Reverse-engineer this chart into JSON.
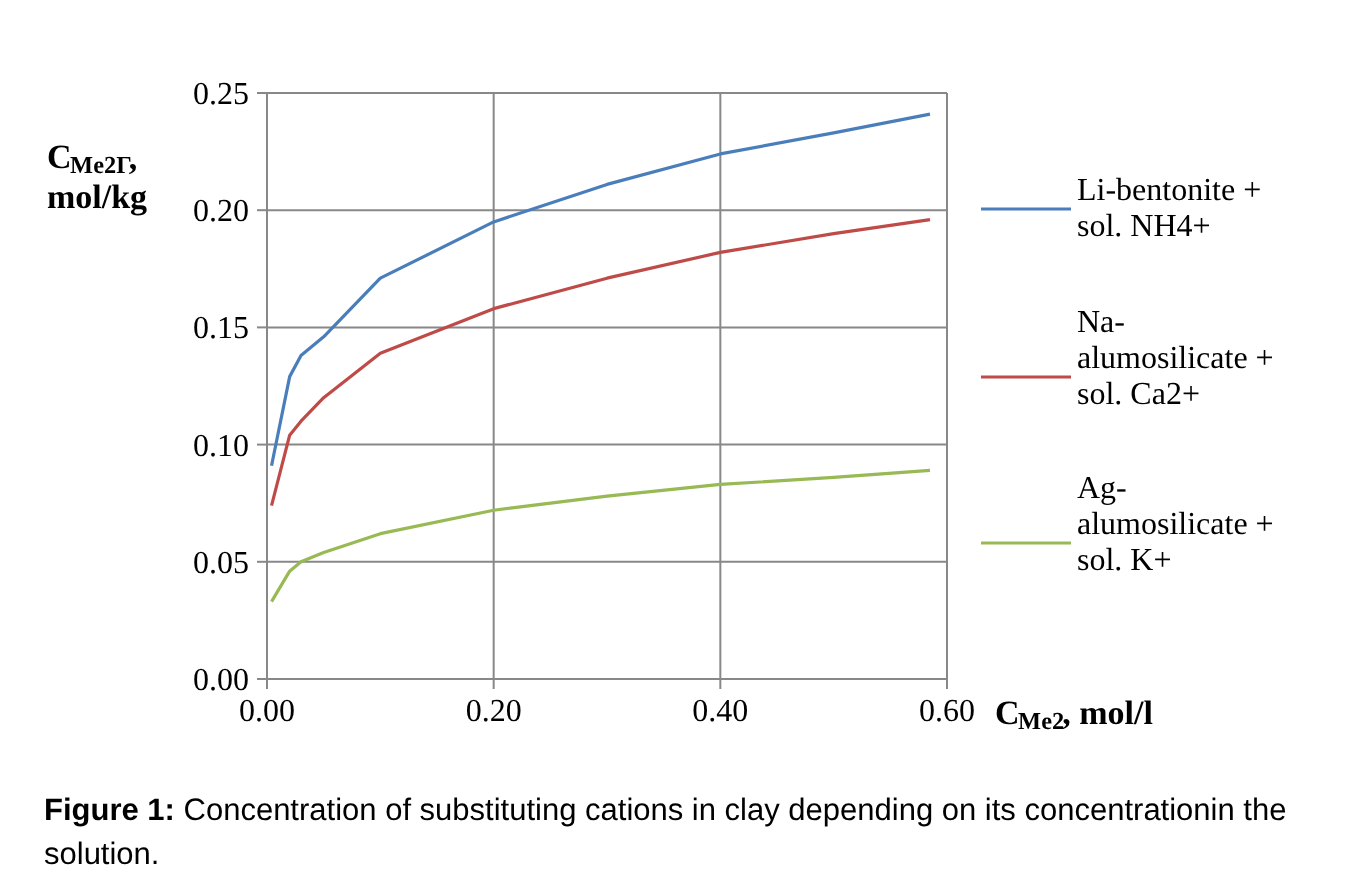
{
  "chart_data": {
    "type": "line",
    "xlabel": "C$_{Me2}$, mol/l",
    "ylabel": "C$_{Me2Г}$, mol/kg",
    "x": [
      0.004,
      0.02,
      0.03,
      0.05,
      0.1,
      0.2,
      0.3,
      0.4,
      0.5,
      0.585
    ],
    "series": [
      {
        "name": "Li-bentonite + sol. NH4+",
        "color": "#4a7ebb",
        "values": [
          0.091,
          0.129,
          0.138,
          0.146,
          0.171,
          0.195,
          0.211,
          0.224,
          0.233,
          0.241
        ]
      },
      {
        "name": "Na-alumosilicate + sol. Ca2+",
        "color": "#be4b48",
        "values": [
          0.074,
          0.104,
          0.11,
          0.12,
          0.139,
          0.158,
          0.171,
          0.182,
          0.19,
          0.196
        ]
      },
      {
        "name": "Ag-alumosilicate + sol. K+",
        "color": "#98b954",
        "values": [
          0.033,
          0.046,
          0.05,
          0.054,
          0.062,
          0.072,
          0.078,
          0.083,
          0.086,
          0.089
        ]
      }
    ],
    "xlim": [
      0,
      0.6
    ],
    "ylim": [
      0,
      0.25
    ],
    "xticks": [
      {
        "value": 0,
        "label": "0.00"
      },
      {
        "value": 0.2,
        "label": "0.20"
      },
      {
        "value": 0.4,
        "label": "0.40"
      },
      {
        "value": 0.6,
        "label": "0.60"
      }
    ],
    "yticks": [
      {
        "value": 0,
        "label": "0.00"
      },
      {
        "value": 0.05,
        "label": "0.05"
      },
      {
        "value": 0.1,
        "label": "0.10"
      },
      {
        "value": 0.15,
        "label": "0.15"
      },
      {
        "value": 0.2,
        "label": "0.20"
      },
      {
        "value": 0.25,
        "label": "0.25"
      }
    ],
    "grid": true,
    "legend": "right",
    "line_style": "solid",
    "annotations": [
      "Figure 1: Concentration of substituting cations in clay depending on its concentrationin the solution."
    ]
  }
}
